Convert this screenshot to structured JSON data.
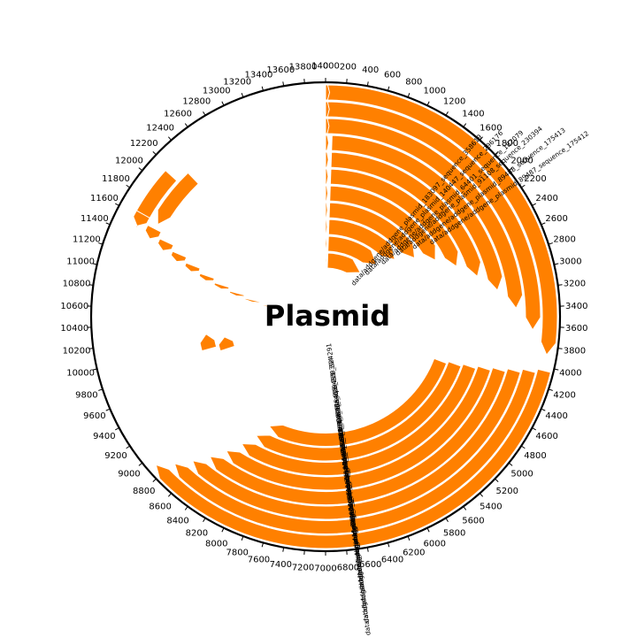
{
  "title": "Plasmid",
  "sequence_length": 14000,
  "colors": {
    "feature_fill": "#ff8000",
    "feature_stroke": "#ffffff",
    "ring": "#000000"
  },
  "ticks": [
    0,
    200,
    400,
    600,
    800,
    1000,
    1200,
    1400,
    1600,
    1800,
    2000,
    2200,
    2400,
    2600,
    2800,
    3000,
    3200,
    3400,
    3600,
    3800,
    4000,
    4200,
    4400,
    4600,
    4800,
    5000,
    5200,
    5400,
    5600,
    5800,
    6000,
    6200,
    6400,
    6600,
    6800,
    7000,
    7200,
    7400,
    7600,
    7800,
    8000,
    8200,
    8400,
    8600,
    8800,
    9000,
    9200,
    9400,
    9600,
    9800,
    10000,
    10200,
    10400,
    10600,
    10800,
    11000,
    11200,
    11400,
    11600,
    11800,
    12000,
    12200,
    12400,
    12600,
    12800,
    13000,
    13200,
    13400,
    13600,
    13800,
    14000
  ],
  "tick_labels": [
    "0",
    "200",
    "400",
    "600",
    "800",
    "1000",
    "1200",
    "1400",
    "1600",
    "1800",
    "2000",
    "2200",
    "2400",
    "2600",
    "2800",
    "3000",
    "3200",
    "3400",
    "3600",
    "3800",
    "4000",
    "4200",
    "4400",
    "4600",
    "4800",
    "5000",
    "5200",
    "5400",
    "5600",
    "5800",
    "6000",
    "6200",
    "6400",
    "6600",
    "6800",
    "7000",
    "7200",
    "7400",
    "7600",
    "7800",
    "8000",
    "8200",
    "8400",
    "8600",
    "8800",
    "9000",
    "9200",
    "9400",
    "9600",
    "9800",
    "10000",
    "10200",
    "10400",
    "10600",
    "10800",
    "11000",
    "11200",
    "11400",
    "11600",
    "11800",
    "12000",
    "12200",
    "12400",
    "12600",
    "12800",
    "13000",
    "13200",
    "13400",
    "13600",
    "13800",
    "14000"
  ],
  "upper_features": [
    {
      "start": 0,
      "end": 3880,
      "strand": 1,
      "label": "data/addgene/addgene_plasmid_89487_sequence_175412"
    },
    {
      "start": 0,
      "end": 3640,
      "strand": 1,
      "label": "data/addgene/addgene_plasmid_89488_sequence_175413"
    },
    {
      "start": 0,
      "end": 3400,
      "strand": 1,
      "label": "data/addgene/addgene_plasmid_91108_sequence_230394"
    },
    {
      "start": 80,
      "end": 3160,
      "strand": 1,
      "label": "data/addgene/addgene_plasmid_64401_sequence_182079"
    },
    {
      "start": 80,
      "end": 2920,
      "strand": 1,
      "label": "data/addgene/addgene_plasmid_140447_sequence_296176"
    },
    {
      "start": 80,
      "end": 2680,
      "strand": 1,
      "label": "data/addgene/addgene_plasmid_183097_sequence_358619"
    },
    {
      "start": 80,
      "end": 2440,
      "strand": 1,
      "label": ""
    },
    {
      "start": 80,
      "end": 2200,
      "strand": 1,
      "label": ""
    },
    {
      "start": 80,
      "end": 1960,
      "strand": 1,
      "label": ""
    },
    {
      "start": 80,
      "end": 1720,
      "strand": 1,
      "label": ""
    },
    {
      "start": 80,
      "end": 1480,
      "strand": 1,
      "label": ""
    }
  ],
  "lower_features": [
    {
      "start": 4040,
      "end": 8900,
      "strand": 1,
      "label": "data/addgene/addgene_plasmid_89487_sequence_175412"
    },
    {
      "start": 4080,
      "end": 8780,
      "strand": 1,
      "label": "data/addgene/addgene_plasmid_174050_sequence_342879"
    },
    {
      "start": 4120,
      "end": 8660,
      "strand": 1,
      "label": "data/addgene/addgene_plasmid_174051_sequence_342923"
    },
    {
      "start": 4160,
      "end": 8540,
      "strand": 1,
      "label": "data/addgene/addgene_plasmid_36184_sequence_44898"
    },
    {
      "start": 4200,
      "end": 8420,
      "strand": 1,
      "label": "data/addgene/addgene_plasmid_89488_sequence_175413"
    },
    {
      "start": 4240,
      "end": 8300,
      "strand": 1,
      "label": "data/addgene/addgene_plasmid_61649_sequence_220451"
    },
    {
      "start": 4280,
      "end": 8180,
      "strand": 1,
      "label": "data/addgene/addgene_plasmid_64401_sequence_220394"
    },
    {
      "start": 4320,
      "end": 8060,
      "strand": 1,
      "label": "data/addgene/addgene_plasmid_69709_sequence_324291"
    }
  ],
  "short_features": [
    {
      "start": 9900,
      "end": 10180,
      "strand": 1,
      "label": ""
    },
    {
      "start": 9800,
      "end": 10060,
      "strand": 1,
      "label": ""
    }
  ],
  "topleft_features": [
    {
      "start": 11480,
      "end": 12150,
      "strand": -1,
      "label": ""
    },
    {
      "start": 11620,
      "end": 12300,
      "strand": -1,
      "label": ""
    }
  ],
  "diagonal_features": [
    {
      "start": 11500,
      "end": 11640,
      "strand": -1,
      "label": ""
    },
    {
      "start": 11430,
      "end": 11560,
      "strand": -1,
      "label": ""
    },
    {
      "start": 11360,
      "end": 11480,
      "strand": -1,
      "label": ""
    },
    {
      "start": 11290,
      "end": 11400,
      "strand": -1,
      "label": ""
    },
    {
      "start": 11220,
      "end": 11320,
      "strand": -1,
      "label": ""
    },
    {
      "start": 11150,
      "end": 11240,
      "strand": -1,
      "label": ""
    },
    {
      "start": 11080,
      "end": 11160,
      "strand": -1,
      "label": ""
    },
    {
      "start": 11010,
      "end": 11080,
      "strand": -1,
      "label": ""
    },
    {
      "start": 10940,
      "end": 11000,
      "strand": -1,
      "label": ""
    },
    {
      "start": 10870,
      "end": 10920,
      "strand": -1,
      "label": ""
    },
    {
      "start": 10800,
      "end": 10840,
      "strand": -1,
      "label": ""
    },
    {
      "start": 10730,
      "end": 10760,
      "strand": -1,
      "label": ""
    }
  ],
  "top_small_features": [
    {
      "start": 0,
      "end": 40,
      "strand": 1,
      "label": ""
    },
    {
      "start": 0,
      "end": 40,
      "strand": 1,
      "label": ""
    },
    {
      "start": 0,
      "end": 40,
      "strand": 1,
      "label": ""
    },
    {
      "start": 0,
      "end": 40,
      "strand": 1,
      "label": ""
    },
    {
      "start": 0,
      "end": 40,
      "strand": 1,
      "label": ""
    },
    {
      "start": 0,
      "end": 40,
      "strand": 1,
      "label": ""
    },
    {
      "start": 0,
      "end": 40,
      "strand": 1,
      "label": ""
    },
    {
      "start": 0,
      "end": 40,
      "strand": 1,
      "label": ""
    },
    {
      "start": 0,
      "end": 40,
      "strand": 1,
      "label": ""
    },
    {
      "start": 0,
      "end": 40,
      "strand": 1,
      "label": ""
    },
    {
      "start": 0,
      "end": 40,
      "strand": 1,
      "label": ""
    },
    {
      "start": 0,
      "end": 40,
      "strand": 1,
      "label": ""
    }
  ]
}
